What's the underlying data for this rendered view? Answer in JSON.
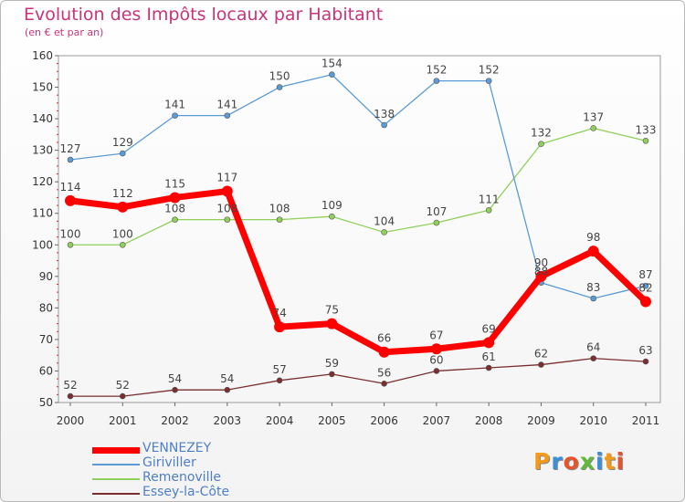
{
  "title": "Evolution des Impôts locaux par Habitant",
  "subtitle": "(en € et par an)",
  "logo": {
    "text": "Proxiti",
    "colors": [
      "#f39a1a",
      "#3b8fd6",
      "#e8532b",
      "#62b83c",
      "#3b8fd6",
      "#f39a1a",
      "#e8532b"
    ]
  },
  "chart_data": {
    "type": "line",
    "x": [
      "2000",
      "2001",
      "2002",
      "2003",
      "2004",
      "2005",
      "2006",
      "2007",
      "2008",
      "2009",
      "2010",
      "2011"
    ],
    "ylim": [
      50,
      160
    ],
    "yticks": [
      50,
      60,
      70,
      80,
      90,
      100,
      110,
      120,
      130,
      140,
      150,
      160
    ],
    "grid": false,
    "legend_position": "bottom-left",
    "series": [
      {
        "name": "VENNEZEY",
        "color": "#ff0000",
        "values": [
          114,
          112,
          115,
          117,
          74,
          75,
          66,
          67,
          69,
          90,
          98,
          82
        ]
      },
      {
        "name": "Giriviller",
        "color": "#5b9bd5",
        "values": [
          127,
          129,
          141,
          141,
          150,
          154,
          138,
          152,
          152,
          88,
          83,
          87
        ]
      },
      {
        "name": "Remenoville",
        "color": "#8fd05a",
        "values": [
          100,
          100,
          108,
          108,
          108,
          109,
          104,
          107,
          111,
          132,
          137,
          133
        ]
      },
      {
        "name": "Essey-la-Côte",
        "color": "#7a2e30",
        "values": [
          52,
          52,
          54,
          54,
          57,
          59,
          56,
          60,
          61,
          62,
          64,
          63
        ]
      }
    ]
  }
}
